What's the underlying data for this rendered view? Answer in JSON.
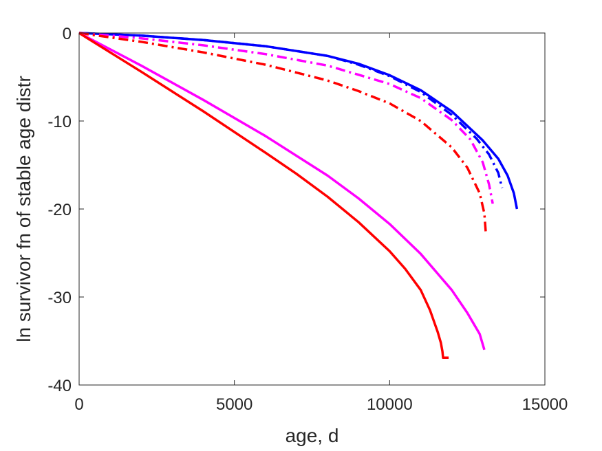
{
  "chart_data": {
    "type": "line",
    "title": "",
    "xlabel": "age, d",
    "ylabel": "ln survivor fn of stable age distr",
    "xlim": [
      0,
      15000
    ],
    "ylim": [
      -40,
      0
    ],
    "xticks": [
      0,
      5000,
      10000,
      15000
    ],
    "yticks": [
      0,
      -10,
      -20,
      -30,
      -40
    ],
    "xtick_labels": [
      "0",
      "5000",
      "10000",
      "15000"
    ],
    "ytick_labels": [
      "0",
      "-10",
      "-20",
      "-30",
      "-40"
    ],
    "grid": false,
    "box": true,
    "legend": "none",
    "series": [
      {
        "color": "#0000ff",
        "style": "solid",
        "points": [
          [
            0,
            0
          ],
          [
            2000,
            -0.3
          ],
          [
            4000,
            -0.8
          ],
          [
            6000,
            -1.5
          ],
          [
            8000,
            -2.6
          ],
          [
            9000,
            -3.5
          ],
          [
            10000,
            -4.8
          ],
          [
            11000,
            -6.5
          ],
          [
            12000,
            -8.9
          ],
          [
            13000,
            -12.2
          ],
          [
            13500,
            -14.3
          ],
          [
            13800,
            -16.2
          ],
          [
            14000,
            -18.2
          ],
          [
            14100,
            -20.0
          ]
        ]
      },
      {
        "color": "#0000ff",
        "style": "dashdot",
        "points": [
          [
            0,
            0
          ],
          [
            2000,
            -0.3
          ],
          [
            4000,
            -0.8
          ],
          [
            6000,
            -1.5
          ],
          [
            8000,
            -2.6
          ],
          [
            9000,
            -3.6
          ],
          [
            10000,
            -4.9
          ],
          [
            11000,
            -6.7
          ],
          [
            12000,
            -9.3
          ],
          [
            12800,
            -12.0
          ],
          [
            13200,
            -13.8
          ],
          [
            13500,
            -15.9
          ],
          [
            13620,
            -17.6
          ]
        ]
      },
      {
        "color": "#ff00ff",
        "style": "dashdot",
        "points": [
          [
            0,
            0
          ],
          [
            2000,
            -0.6
          ],
          [
            4000,
            -1.4
          ],
          [
            6000,
            -2.4
          ],
          [
            8000,
            -3.7
          ],
          [
            10000,
            -5.8
          ],
          [
            11000,
            -7.4
          ],
          [
            12000,
            -9.9
          ],
          [
            12600,
            -12.1
          ],
          [
            13000,
            -14.7
          ],
          [
            13200,
            -17.2
          ],
          [
            13320,
            -19.4
          ]
        ]
      },
      {
        "color": "#ff0000",
        "style": "dashdot",
        "points": [
          [
            0,
            0
          ],
          [
            2000,
            -1.0
          ],
          [
            4000,
            -2.2
          ],
          [
            6000,
            -3.6
          ],
          [
            8000,
            -5.4
          ],
          [
            9000,
            -6.6
          ],
          [
            10000,
            -8.0
          ],
          [
            11000,
            -10.0
          ],
          [
            12000,
            -13.0
          ],
          [
            12500,
            -15.3
          ],
          [
            12900,
            -18.2
          ],
          [
            13050,
            -20.5
          ],
          [
            13100,
            -22.8
          ]
        ]
      },
      {
        "color": "#ff00ff",
        "style": "solid",
        "points": [
          [
            0,
            0
          ],
          [
            2000,
            -3.7
          ],
          [
            4000,
            -7.6
          ],
          [
            6000,
            -11.7
          ],
          [
            8000,
            -16.2
          ],
          [
            9000,
            -18.8
          ],
          [
            10000,
            -21.7
          ],
          [
            11000,
            -25.1
          ],
          [
            12000,
            -29.2
          ],
          [
            12500,
            -31.8
          ],
          [
            12900,
            -34.2
          ],
          [
            13050,
            -36.0
          ]
        ]
      },
      {
        "color": "#ff0000",
        "style": "solid",
        "points": [
          [
            0,
            0
          ],
          [
            1000,
            -2.2
          ],
          [
            2000,
            -4.4
          ],
          [
            4000,
            -8.9
          ],
          [
            6000,
            -13.6
          ],
          [
            7000,
            -16.0
          ],
          [
            8000,
            -18.6
          ],
          [
            9000,
            -21.5
          ],
          [
            10000,
            -24.8
          ],
          [
            10500,
            -26.8
          ],
          [
            11000,
            -29.2
          ],
          [
            11300,
            -31.5
          ],
          [
            11550,
            -34.0
          ],
          [
            11650,
            -35.2
          ],
          [
            11700,
            -36.2
          ],
          [
            11720,
            -36.9
          ],
          [
            11900,
            -36.9
          ]
        ]
      }
    ]
  }
}
